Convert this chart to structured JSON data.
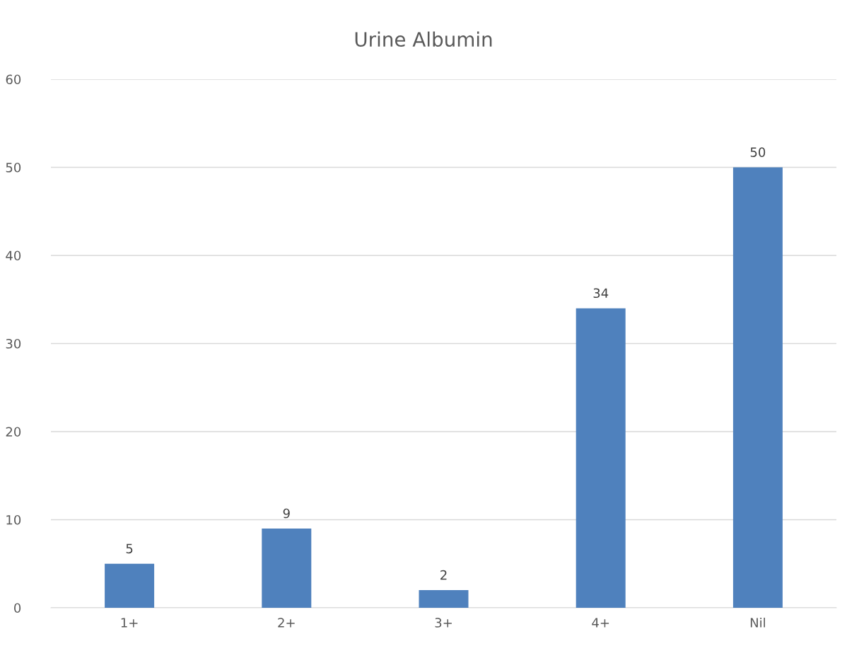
{
  "chart_data": {
    "type": "bar",
    "title": "Urine Albumin",
    "categories": [
      "1+",
      "2+",
      "3+",
      "4+",
      "Nil"
    ],
    "values": [
      5,
      9,
      2,
      34,
      50
    ],
    "color": "#4f81bd",
    "ylim": [
      0,
      60
    ],
    "yticks": [
      0,
      10,
      20,
      30,
      40,
      50,
      60
    ],
    "grid": "y",
    "data_labels": true
  }
}
